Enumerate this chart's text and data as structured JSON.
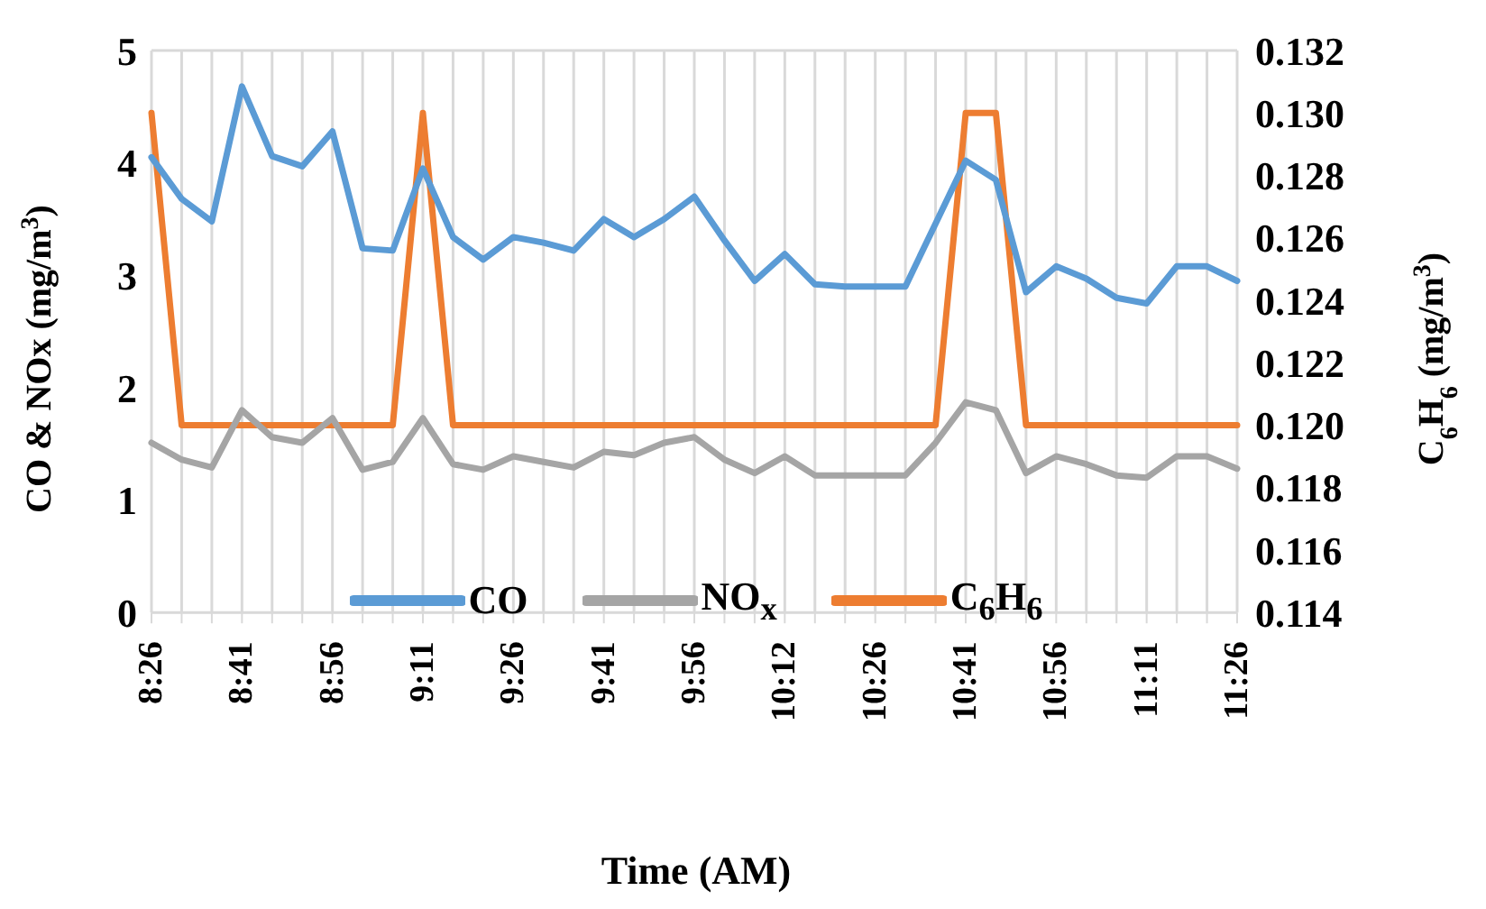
{
  "chart_data": {
    "type": "line",
    "xlabel": "Time (AM)",
    "ylabel": "CO & NOx (mg/m$^{3}$)",
    "y2label": "C$_{6}$H$_{6}$ (mg/m$^{3}$)",
    "categories": [
      "8:26",
      null,
      null,
      "8:41",
      null,
      null,
      "8:56",
      null,
      null,
      "9:11",
      null,
      null,
      "9:26",
      null,
      null,
      "9:41",
      null,
      null,
      "9:56",
      null,
      null,
      "10:12",
      null,
      null,
      "10:26",
      null,
      null,
      "10:41",
      null,
      null,
      "10:56",
      null,
      null,
      "11:11",
      null,
      null,
      "11:26"
    ],
    "series": [
      {
        "name": "CO",
        "color": "#5b9bd5",
        "values": [
          4.05,
          3.68,
          3.48,
          4.68,
          4.06,
          3.97,
          4.28,
          3.24,
          3.22,
          3.95,
          3.34,
          3.14,
          3.34,
          3.29,
          3.22,
          3.5,
          3.34,
          3.5,
          3.7,
          3.31,
          2.95,
          3.19,
          2.92,
          2.9,
          2.9,
          2.9,
          3.46,
          4.02,
          3.85,
          2.85,
          3.08,
          2.97,
          2.8,
          2.75,
          3.08,
          3.08,
          2.95
        ]
      },
      {
        "name": "NO$_{x}$",
        "color": "#a5a5a5",
        "values": [
          1.51,
          1.36,
          1.29,
          1.8,
          1.56,
          1.51,
          1.73,
          1.27,
          1.34,
          1.73,
          1.32,
          1.27,
          1.39,
          1.34,
          1.29,
          1.43,
          1.4,
          1.51,
          1.56,
          1.36,
          1.24,
          1.39,
          1.22,
          1.22,
          1.22,
          1.22,
          1.51,
          1.87,
          1.8,
          1.24,
          1.39,
          1.32,
          1.22,
          1.2,
          1.39,
          1.39,
          1.28
        ]
      },
      {
        "name": "C$_{6}$H$_{6}$",
        "color": "#ed7d31",
        "axis": "y2",
        "values": [
          0.13,
          0.12,
          0.12,
          0.12,
          0.12,
          0.12,
          0.12,
          0.12,
          0.12,
          0.13,
          0.12,
          0.12,
          0.12,
          0.12,
          0.12,
          0.12,
          0.12,
          0.12,
          0.12,
          0.12,
          0.12,
          0.12,
          0.12,
          0.12,
          0.12,
          0.12,
          0.12,
          0.13,
          0.13,
          0.12,
          0.12,
          0.12,
          0.12,
          0.12,
          0.12,
          0.12,
          0.12
        ]
      }
    ],
    "ylim": [
      0,
      5
    ],
    "yticks": [
      0,
      1,
      2,
      3,
      4,
      5
    ],
    "y2lim": [
      0.114,
      0.132
    ],
    "y2ticks": [
      0.114,
      0.116,
      0.118,
      {
        "value": 0.12,
        "label": "0.120"
      },
      0.122,
      0.124,
      0.126,
      0.128,
      {
        "value": 0.13,
        "label": "0.130"
      },
      0.132
    ],
    "grid": true,
    "legend": "bottom",
    "marker": "none",
    "line_style": "solid"
  }
}
